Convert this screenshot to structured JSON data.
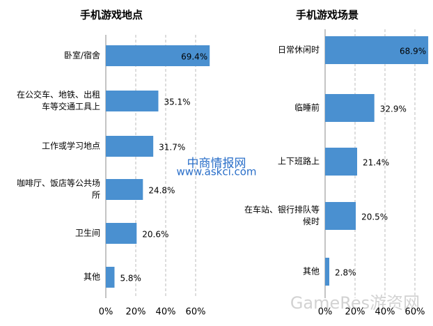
{
  "chart_data": [
    {
      "type": "bar",
      "title": "手机游戏地点",
      "categories": [
        "卧室/宿舍",
        "在公交车、地铁、出租车等交通工具上",
        "工作或学习地点",
        "咖啡厅、饭店等公共场所",
        "卫生间",
        "其他"
      ],
      "values": [
        69.4,
        35.1,
        31.7,
        24.8,
        20.6,
        5.8
      ],
      "value_labels": [
        "69.4%",
        "35.1%",
        "31.7%",
        "24.8%",
        "20.6%",
        "5.8%"
      ],
      "color": "#4a90d0",
      "xlim": [
        0,
        70
      ],
      "xticks": [
        {
          "value": 0,
          "label": "0%"
        },
        {
          "value": 20,
          "label": "20%"
        },
        {
          "value": 40,
          "label": "40%"
        },
        {
          "value": 60,
          "label": "60%"
        }
      ],
      "grid": true
    },
    {
      "type": "bar",
      "title": "手机游戏场景",
      "categories": [
        "日常休闲时",
        "临睡前",
        "上下班路上",
        "在车站、银行排队等候时",
        "其他"
      ],
      "values": [
        68.9,
        32.9,
        21.4,
        20.5,
        2.8
      ],
      "value_labels": [
        "68.9%",
        "32.9%",
        "21.4%",
        "20.5%",
        "2.8%"
      ],
      "color": "#4a90d0",
      "xlim": [
        0,
        70
      ],
      "xticks": [
        {
          "value": 0,
          "label": "0%"
        },
        {
          "value": 20,
          "label": "20%"
        },
        {
          "value": 40,
          "label": "40%"
        },
        {
          "value": 60,
          "label": "60%"
        }
      ],
      "grid": true
    }
  ],
  "watermarks": [
    "中商情报网",
    "www.askci.com",
    "GameRes游资网"
  ]
}
